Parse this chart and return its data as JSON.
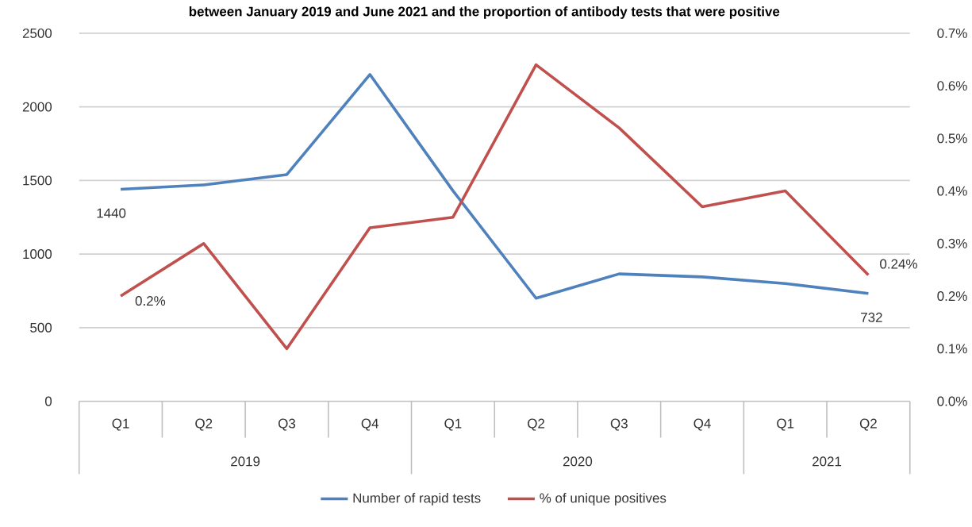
{
  "chart_data": {
    "type": "line",
    "title": "between January 2019 and June 2021 and the proportion of antibody tests that were positive",
    "categories": [
      "Q1",
      "Q2",
      "Q3",
      "Q4",
      "Q1",
      "Q2",
      "Q3",
      "Q4",
      "Q1",
      "Q2"
    ],
    "annotations": [
      "2019",
      "2020",
      "2021"
    ],
    "series": [
      {
        "name": "Number of rapid tests",
        "color": "#4f81bd",
        "values": [
          1440,
          1470,
          1540,
          2220,
          1430,
          700,
          865,
          845,
          800,
          732
        ],
        "value_labels": [
          "1440",
          null,
          null,
          null,
          null,
          null,
          null,
          null,
          null,
          "732"
        ]
      },
      {
        "name": "% of unique positives",
        "color": "#c0504d",
        "axis": "y2",
        "values": [
          0.2,
          0.3,
          0.1,
          0.33,
          0.35,
          0.64,
          0.52,
          0.37,
          0.4,
          0.24
        ],
        "value_labels": [
          "0.2%",
          null,
          null,
          null,
          null,
          null,
          null,
          null,
          null,
          "0.24%"
        ]
      }
    ],
    "ylim": [
      0,
      2500
    ],
    "yticks": [
      0,
      500,
      1000,
      1500,
      2000,
      2500
    ],
    "y2lim": [
      0,
      0.7
    ],
    "y2ticks": [
      {
        "value": 0,
        "label": "0.0%"
      },
      {
        "value": 0.1,
        "label": "0.1%"
      },
      {
        "value": 0.2,
        "label": "0.2%"
      },
      {
        "value": 0.3,
        "label": "0.3%"
      },
      {
        "value": 0.4,
        "label": "0.4%"
      },
      {
        "value": 0.5,
        "label": "0.5%"
      },
      {
        "value": 0.6,
        "label": "0.6%"
      },
      {
        "value": 0.7,
        "label": "0.7%"
      }
    ],
    "grid": "y",
    "legend": "bottom",
    "marker": "none",
    "line_style": "solid"
  }
}
